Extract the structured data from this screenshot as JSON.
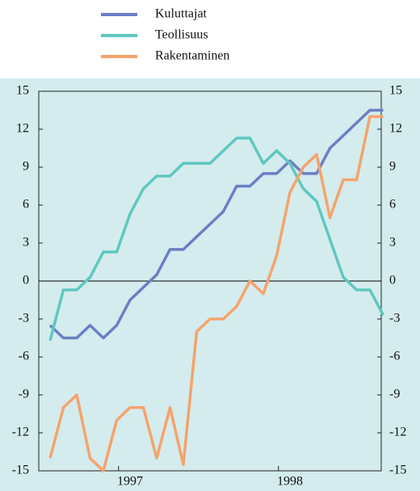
{
  "chart_data": {
    "type": "line",
    "categories": [
      null,
      null,
      null,
      null,
      null,
      null,
      "1997",
      null,
      null,
      null,
      null,
      null,
      null,
      null,
      null,
      null,
      null,
      null,
      "1998",
      null,
      null,
      null,
      null,
      null,
      null,
      null
    ],
    "series": [
      {
        "name": "Kuluttajat",
        "color": "#6b7fc4",
        "values": [
          -3.5,
          -4.5,
          -4.5,
          -3.5,
          -4.5,
          -3.5,
          -1.5,
          -0.5,
          0.5,
          2.5,
          2.5,
          3.5,
          4.5,
          5.5,
          7.5,
          7.5,
          8.5,
          8.5,
          9.5,
          8.5,
          8.5,
          10.5,
          11.5,
          12.5,
          13.5,
          13.5
        ]
      },
      {
        "name": "Teollisuus",
        "color": "#5ec8c0",
        "values": [
          -4.7,
          -0.7,
          -0.7,
          0.3,
          2.3,
          2.3,
          5.3,
          7.3,
          8.3,
          8.3,
          9.3,
          9.3,
          9.3,
          10.3,
          11.3,
          11.3,
          9.3,
          10.3,
          9.3,
          7.3,
          6.3,
          3.3,
          0.3,
          -0.7,
          -0.7,
          -2.7
        ]
      },
      {
        "name": "Rakentaminen",
        "color": "#f5a36c",
        "values": [
          -14,
          -10,
          -9,
          -14,
          -15,
          -11,
          -10,
          -10,
          -14,
          -10,
          -14.5,
          -4,
          -3,
          -3,
          -2,
          0,
          -1,
          2,
          7,
          9,
          10,
          5,
          8,
          8,
          13,
          13
        ]
      }
    ],
    "ylim": [
      -15,
      15
    ],
    "yticks": [
      -15,
      -12,
      -9,
      -6,
      -3,
      0,
      3,
      6,
      9,
      12,
      15
    ],
    "y2lim": [
      -15,
      15
    ],
    "y2ticks": [
      -15,
      -12,
      -9,
      -6,
      -3,
      0,
      3,
      6,
      9,
      12,
      15
    ],
    "background": "#d4ecee"
  }
}
